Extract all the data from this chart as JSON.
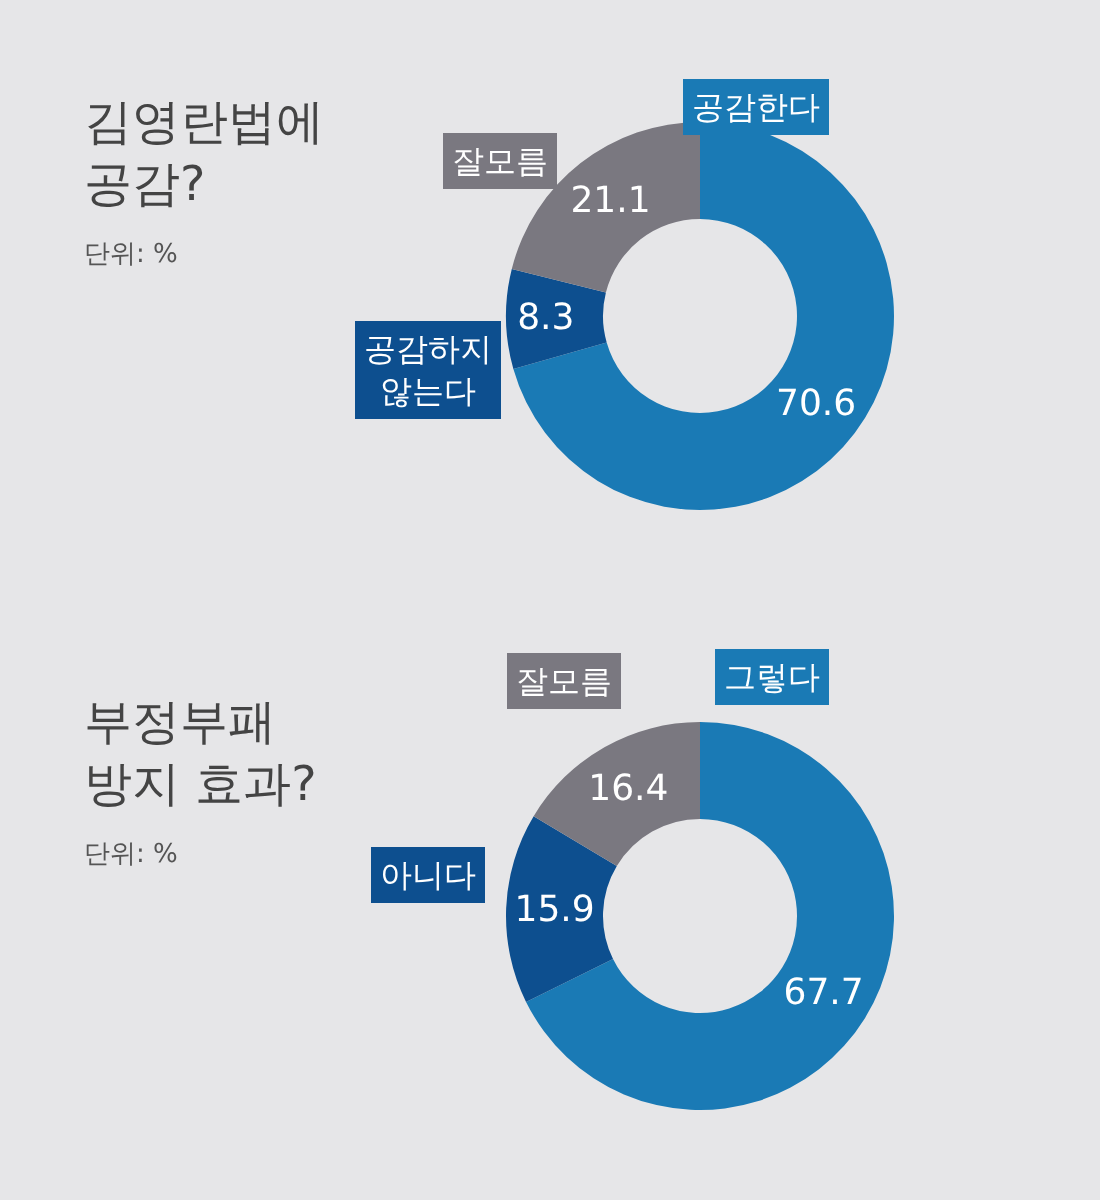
{
  "chart_data": [
    {
      "type": "donut",
      "title": "김영란법에\n공감?",
      "subtitle": "단위: %",
      "categories": [
        "공감한다",
        "공감하지\n않는다",
        "잘모름"
      ],
      "values": [
        70.6,
        8.3,
        21.1
      ],
      "colors": [
        "#1a7ab5",
        "#0d4f8f",
        "#7a7880"
      ],
      "data_labels": true
    },
    {
      "type": "donut",
      "title": "부정부패\n방지 효과?",
      "subtitle": "단위: %",
      "categories": [
        "그렇다",
        "아니다",
        "잘모름"
      ],
      "values": [
        67.7,
        15.9,
        16.4
      ],
      "colors": [
        "#1a7ab5",
        "#0d4f8f",
        "#7a7880"
      ],
      "data_labels": true
    }
  ]
}
